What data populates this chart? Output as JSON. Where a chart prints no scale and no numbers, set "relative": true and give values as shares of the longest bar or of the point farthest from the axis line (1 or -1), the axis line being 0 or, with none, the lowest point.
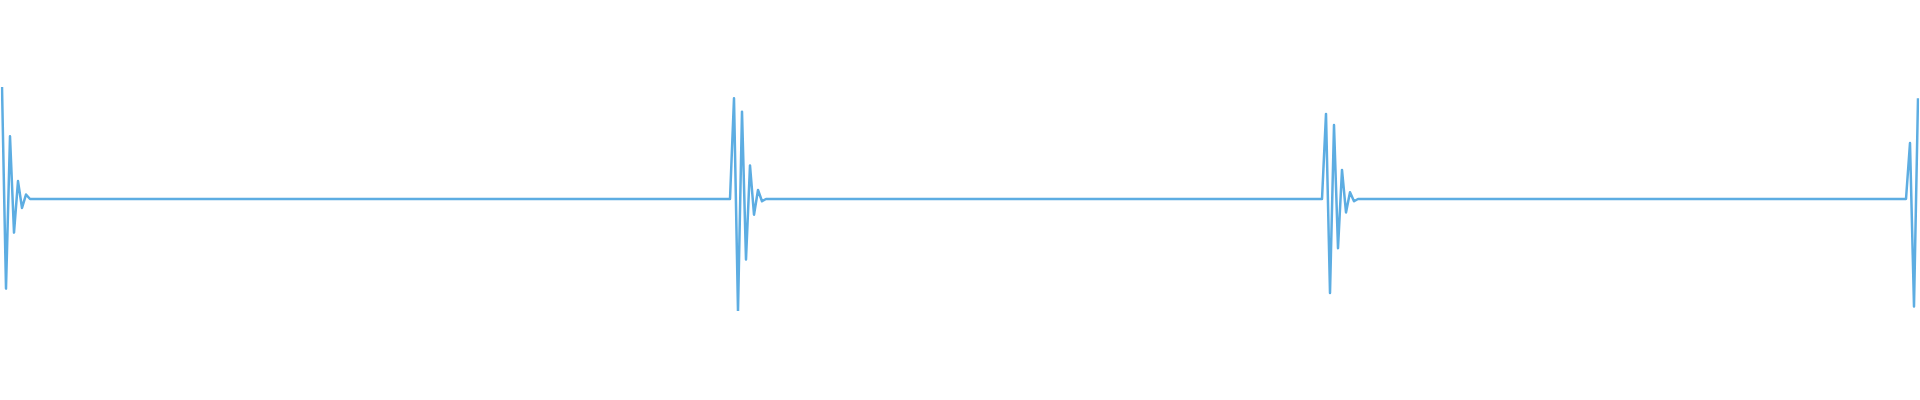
{
  "chart_data": {
    "type": "line",
    "relative": true,
    "legend": false,
    "marker": "none",
    "categories": [
      null,
      null,
      null,
      null,
      null,
      null,
      null,
      null,
      null,
      null,
      null,
      null,
      null,
      null,
      null,
      null,
      null,
      null,
      null,
      null,
      null,
      null,
      null,
      null,
      null,
      null,
      null,
      null,
      null,
      null,
      null,
      null,
      null,
      null,
      null,
      null,
      null,
      null,
      null,
      null,
      null,
      null,
      null,
      null,
      null,
      null,
      null,
      null,
      null,
      null,
      null,
      null,
      null,
      null,
      null,
      null,
      null,
      null,
      null,
      null,
      null,
      null,
      null,
      null,
      null,
      null,
      null,
      null,
      null,
      null,
      null,
      null,
      null,
      null,
      null,
      null,
      null,
      null,
      null,
      null,
      null,
      null,
      null,
      null,
      null,
      null,
      null,
      null,
      null,
      null,
      null,
      null,
      null,
      null,
      null,
      null,
      null,
      null,
      null,
      null,
      null,
      null,
      null,
      null,
      null,
      null,
      null,
      null,
      null,
      null,
      null,
      null,
      null,
      null,
      null,
      null,
      null,
      null,
      null,
      null,
      null,
      null,
      null,
      null,
      null,
      null,
      null,
      null,
      null,
      null,
      null,
      null,
      null,
      null,
      null,
      null,
      null,
      null,
      null,
      null,
      null,
      null,
      null,
      null,
      null,
      null,
      null,
      null,
      null,
      null,
      null,
      null,
      null,
      null,
      null,
      null,
      null,
      null,
      null,
      null,
      null,
      null,
      null,
      null,
      null,
      null,
      null,
      null,
      null,
      null,
      null,
      null,
      null,
      null,
      null,
      null,
      null,
      null,
      null,
      null,
      null,
      null,
      null,
      null,
      null,
      null,
      null,
      null,
      null,
      null,
      null,
      null,
      null,
      null,
      null,
      null,
      null,
      null,
      null,
      null,
      null,
      null,
      null,
      null,
      null,
      null,
      null,
      null,
      null,
      null,
      null,
      null,
      null,
      null,
      null,
      null,
      null,
      null,
      null,
      null,
      null,
      null,
      null,
      null,
      null,
      null,
      null,
      null,
      null,
      null,
      null,
      null,
      null,
      null,
      null,
      null,
      null,
      null,
      null,
      null,
      null,
      null,
      null,
      null,
      null,
      null,
      null,
      null,
      null,
      null,
      null,
      null,
      null,
      null,
      null,
      null,
      null,
      null,
      null,
      null,
      null,
      null,
      null,
      null,
      null,
      null,
      null,
      null,
      null,
      null,
      null,
      null,
      null,
      null,
      null,
      null,
      null,
      null,
      null,
      null,
      null,
      null,
      null,
      null,
      null,
      null,
      null,
      null,
      null,
      null,
      null,
      null,
      null,
      null,
      null,
      null,
      null,
      null,
      null,
      null,
      null,
      null,
      null,
      null,
      null,
      null,
      null,
      null,
      null,
      null,
      null,
      null,
      null,
      null,
      null,
      null,
      null,
      null,
      null,
      null,
      null,
      null,
      null,
      null,
      null,
      null,
      null,
      null,
      null,
      null,
      null,
      null,
      null,
      null,
      null,
      null,
      null,
      null,
      null,
      null,
      null,
      null,
      null,
      null,
      null,
      null,
      null,
      null,
      null,
      null,
      null,
      null,
      null,
      null,
      null,
      null,
      null,
      null,
      null,
      null,
      null,
      null,
      null,
      null,
      null,
      null,
      null,
      null,
      null,
      null,
      null,
      null,
      null,
      null,
      null,
      null,
      null,
      null,
      null,
      null,
      null,
      null,
      null,
      null,
      null,
      null,
      null,
      null,
      null,
      null,
      null,
      null,
      null,
      null,
      null,
      null,
      null,
      null,
      null,
      null,
      null,
      null,
      null,
      null,
      null,
      null,
      null,
      null,
      null,
      null,
      null,
      null,
      null,
      null,
      null,
      null,
      null,
      null,
      null,
      null,
      null,
      null,
      null,
      null,
      null,
      null,
      null,
      null,
      null,
      null,
      null,
      null,
      null,
      null,
      null,
      null,
      null,
      null,
      null,
      null,
      null,
      null,
      null,
      null,
      null,
      null,
      null,
      null,
      null,
      null,
      null,
      null,
      null,
      null,
      null,
      null,
      null,
      null,
      null,
      null,
      null,
      null,
      null,
      null,
      null,
      null,
      null,
      null,
      null,
      null,
      null,
      null,
      null,
      null,
      null,
      null,
      null,
      null,
      null,
      null
    ],
    "series": [
      {
        "color": "#5dade2",
        "values": [
          1.0,
          0.1,
          0.78,
          0.35,
          0.58,
          0.46,
          0.52,
          0.5,
          0.5,
          0.5,
          0.5,
          0.5,
          0.5,
          0.5,
          0.5,
          0.5,
          0.5,
          0.5,
          0.5,
          0.5,
          0.5,
          0.5,
          0.5,
          0.5,
          0.5,
          0.5,
          0.5,
          0.5,
          0.5,
          0.5,
          0.5,
          0.5,
          0.5,
          0.5,
          0.5,
          0.5,
          0.5,
          0.5,
          0.5,
          0.5,
          0.5,
          0.5,
          0.5,
          0.5,
          0.5,
          0.5,
          0.5,
          0.5,
          0.5,
          0.5,
          0.5,
          0.5,
          0.5,
          0.5,
          0.5,
          0.5,
          0.5,
          0.5,
          0.5,
          0.5,
          0.5,
          0.5,
          0.5,
          0.5,
          0.5,
          0.5,
          0.5,
          0.5,
          0.5,
          0.5,
          0.5,
          0.5,
          0.5,
          0.5,
          0.5,
          0.5,
          0.5,
          0.5,
          0.5,
          0.5,
          0.5,
          0.5,
          0.5,
          0.5,
          0.5,
          0.5,
          0.5,
          0.5,
          0.5,
          0.5,
          0.5,
          0.5,
          0.5,
          0.5,
          0.5,
          0.5,
          0.5,
          0.5,
          0.5,
          0.5,
          0.5,
          0.5,
          0.5,
          0.5,
          0.5,
          0.5,
          0.5,
          0.5,
          0.5,
          0.5,
          0.5,
          0.5,
          0.5,
          0.5,
          0.5,
          0.5,
          0.5,
          0.5,
          0.5,
          0.5,
          0.5,
          0.5,
          0.5,
          0.5,
          0.5,
          0.5,
          0.5,
          0.5,
          0.5,
          0.5,
          0.5,
          0.5,
          0.5,
          0.5,
          0.5,
          0.5,
          0.5,
          0.5,
          0.5,
          0.5,
          0.5,
          0.5,
          0.5,
          0.5,
          0.5,
          0.5,
          0.5,
          0.5,
          0.5,
          0.5,
          0.5,
          0.5,
          0.5,
          0.5,
          0.5,
          0.5,
          0.5,
          0.5,
          0.5,
          0.5,
          0.5,
          0.5,
          0.5,
          0.5,
          0.5,
          0.5,
          0.5,
          0.5,
          0.5,
          0.5,
          0.5,
          0.5,
          0.5,
          0.5,
          0.5,
          0.5,
          0.5,
          0.5,
          0.5,
          0.5,
          0.5,
          0.5,
          0.5,
          0.95,
          0.0,
          0.89,
          0.23,
          0.65,
          0.43,
          0.54,
          0.49,
          0.5,
          0.5,
          0.5,
          0.5,
          0.5,
          0.5,
          0.5,
          0.5,
          0.5,
          0.5,
          0.5,
          0.5,
          0.5,
          0.5,
          0.5,
          0.5,
          0.5,
          0.5,
          0.5,
          0.5,
          0.5,
          0.5,
          0.5,
          0.5,
          0.5,
          0.5,
          0.5,
          0.5,
          0.5,
          0.5,
          0.5,
          0.5,
          0.5,
          0.5,
          0.5,
          0.5,
          0.5,
          0.5,
          0.5,
          0.5,
          0.5,
          0.5,
          0.5,
          0.5,
          0.5,
          0.5,
          0.5,
          0.5,
          0.5,
          0.5,
          0.5,
          0.5,
          0.5,
          0.5,
          0.5,
          0.5,
          0.5,
          0.5,
          0.5,
          0.5,
          0.5,
          0.5,
          0.5,
          0.5,
          0.5,
          0.5,
          0.5,
          0.5,
          0.5,
          0.5,
          0.5,
          0.5,
          0.5,
          0.5,
          0.5,
          0.5,
          0.5,
          0.5,
          0.5,
          0.5,
          0.5,
          0.5,
          0.5,
          0.5,
          0.5,
          0.5,
          0.5,
          0.5,
          0.5,
          0.5,
          0.5,
          0.5,
          0.5,
          0.5,
          0.5,
          0.5,
          0.5,
          0.5,
          0.5,
          0.5,
          0.5,
          0.5,
          0.5,
          0.5,
          0.5,
          0.5,
          0.5,
          0.5,
          0.5,
          0.5,
          0.5,
          0.5,
          0.5,
          0.5,
          0.5,
          0.5,
          0.5,
          0.5,
          0.5,
          0.5,
          0.5,
          0.5,
          0.5,
          0.5,
          0.5,
          0.5,
          0.5,
          0.5,
          0.5,
          0.5,
          0.5,
          0.5,
          0.5,
          0.5,
          0.5,
          0.5,
          0.5,
          0.5,
          0.5,
          0.5,
          0.88,
          0.08,
          0.83,
          0.28,
          0.63,
          0.44,
          0.53,
          0.49,
          0.5,
          0.5,
          0.5,
          0.5,
          0.5,
          0.5,
          0.5,
          0.5,
          0.5,
          0.5,
          0.5,
          0.5,
          0.5,
          0.5,
          0.5,
          0.5,
          0.5,
          0.5,
          0.5,
          0.5,
          0.5,
          0.5,
          0.5,
          0.5,
          0.5,
          0.5,
          0.5,
          0.5,
          0.5,
          0.5,
          0.5,
          0.5,
          0.5,
          0.5,
          0.5,
          0.5,
          0.5,
          0.5,
          0.5,
          0.5,
          0.5,
          0.5,
          0.5,
          0.5,
          0.5,
          0.5,
          0.5,
          0.5,
          0.5,
          0.5,
          0.5,
          0.5,
          0.5,
          0.5,
          0.5,
          0.5,
          0.5,
          0.5,
          0.5,
          0.5,
          0.5,
          0.5,
          0.5,
          0.5,
          0.5,
          0.5,
          0.5,
          0.5,
          0.5,
          0.5,
          0.5,
          0.5,
          0.5,
          0.5,
          0.5,
          0.5,
          0.5,
          0.5,
          0.5,
          0.5,
          0.5,
          0.5,
          0.5,
          0.5,
          0.5,
          0.5,
          0.5,
          0.5,
          0.5,
          0.5,
          0.5,
          0.5,
          0.5,
          0.5,
          0.5,
          0.5,
          0.5,
          0.5,
          0.5,
          0.5,
          0.5,
          0.5,
          0.5,
          0.5,
          0.5,
          0.5,
          0.5,
          0.5,
          0.5,
          0.5,
          0.5,
          0.5,
          0.5,
          0.5,
          0.5,
          0.5,
          0.5,
          0.5,
          0.5,
          0.5,
          0.5,
          0.5,
          0.5,
          0.5,
          0.5,
          0.5,
          0.5,
          0.5,
          0.5,
          0.5,
          0.5,
          0.5,
          0.5,
          0.5,
          0.5,
          0.5,
          0.5,
          0.5,
          0.75,
          0.02,
          0.95
        ]
      }
    ]
  }
}
